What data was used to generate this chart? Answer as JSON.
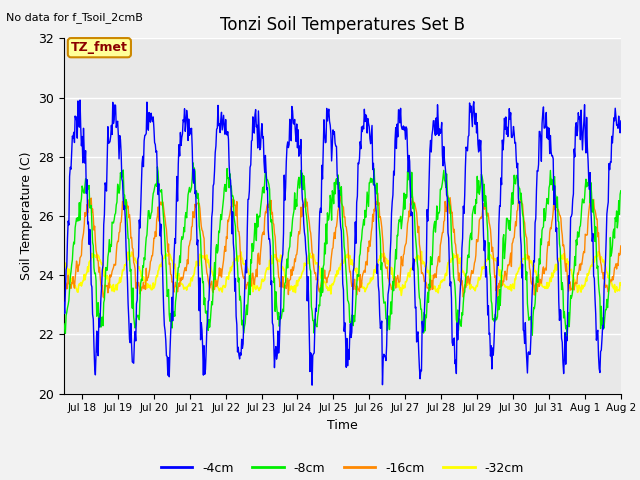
{
  "title": "Tonzi Soil Temperatures Set B",
  "xlabel": "Time",
  "ylabel": "Soil Temperature (C)",
  "no_data_text": "No data for f_Tsoil_2cmB",
  "tz_fmet_label": "TZ_fmet",
  "ylim": [
    20,
    32
  ],
  "yticks": [
    20,
    22,
    24,
    26,
    28,
    30,
    32
  ],
  "background_color": "#e8e8e8",
  "fig_background": "#f2f2f2",
  "line_colors": {
    "-4cm": "#0000ff",
    "-8cm": "#00ee00",
    "-16cm": "#ff8800",
    "-32cm": "#ffff00"
  },
  "legend_labels": [
    "-4cm",
    "-8cm",
    "-16cm",
    "-32cm"
  ],
  "legend_colors": [
    "#0000ff",
    "#00ee00",
    "#ff8800",
    "#ffff00"
  ],
  "x_tick_labels": [
    "Jul 18",
    "Jul 19",
    "Jul 20",
    "Jul 21",
    "Jul 22",
    "Jul 23",
    "Jul 24",
    "Jul 25",
    "Jul 26",
    "Jul 27",
    "Jul 28",
    "Jul 29",
    "Jul 30",
    "Jul 31",
    "Aug 1",
    "Aug 2"
  ],
  "n_days": 15.5,
  "n_points": 800
}
